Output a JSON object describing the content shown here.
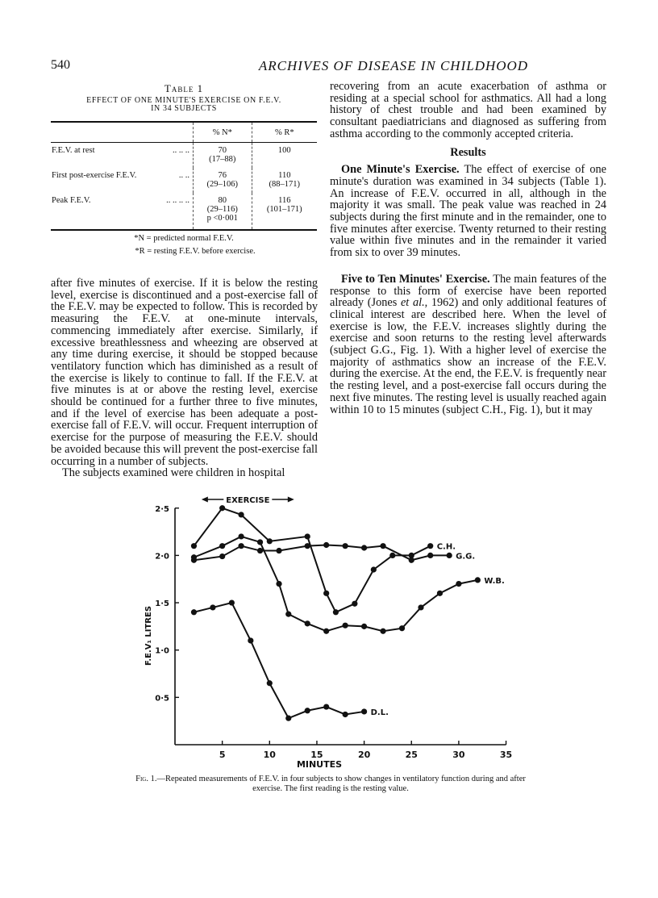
{
  "header": {
    "page_number": "540",
    "journal": "ARCHIVES OF DISEASE IN CHILDHOOD"
  },
  "table": {
    "title": "Table 1",
    "caption_line1": "EFFECT OF ONE MINUTE'S EXERCISE ON F.E.V.",
    "caption_line2": "IN 34 SUBJECTS",
    "columns": [
      "",
      "% N*",
      "% R*"
    ],
    "rows": [
      {
        "label": "F.E.V. at rest",
        "dots": "..   ..   ..",
        "n": "70",
        "n_range": "(17–88)",
        "n_extra": "",
        "r": "100",
        "r_range": ""
      },
      {
        "label": "First post-exercise F.E.V.",
        "dots": "..   ..",
        "n": "76",
        "n_range": "(29–106)",
        "n_extra": "",
        "r": "110",
        "r_range": "(88–171)"
      },
      {
        "label": "Peak F.E.V.",
        "dots": "..   ..   ..   ..",
        "n": "80",
        "n_range": "(29–116)",
        "n_extra": "p <0·001",
        "r": "116",
        "r_range": "(101–171)"
      }
    ],
    "footnote_n": "*N = predicted normal F.E.V.",
    "footnote_r": "*R = resting F.E.V. before exercise."
  },
  "left_column": {
    "p1": "after five minutes of exercise. If it is below the resting level, exercise is discontinued and a post-exercise fall of the F.E.V. may be expected to follow. This is recorded by measuring the F.E.V. at one-minute intervals, commencing immediately after exercise. Similarly, if excessive breathlessness and wheezing are observed at any time during exercise, it should be stopped because ventilatory function which has diminished as a result of the exercise is likely to continue to fall. If the F.E.V. at five minutes is at or above the resting level, exercise should be continued for a further three to five minutes, and if the level of exercise has been adequate a post-exercise fall of F.E.V. will occur. Frequent interruption of exercise for the purpose of measuring the F.E.V. should be avoided because this will prevent the post-exercise fall occurring in a number of subjects.",
    "p2": "The subjects examined were children in hospital"
  },
  "right_column": {
    "p1": "recovering from an acute exacerbation of asthma or residing at a special school for asthmatics. All had a long history of chest trouble and had been examined by consultant paediatricians and diagnosed as suffering from asthma according to the commonly accepted criteria.",
    "results_heading": "Results",
    "s1_heading": "One Minute's Exercise.",
    "s1_text": "The effect of exercise of one minute's duration was examined in 34 subjects (Table 1). An increase of F.E.V. occurred in all, although in the majority it was small. The peak value was reached in 24 subjects during the first minute and in the remainder, one to five minutes after exercise. Twenty returned to their resting value within five minutes and in the remainder it varied from six to over 39 minutes.",
    "s2_heading": "Five to Ten Minutes' Exercise.",
    "s2_text_a": "The main features of the response to this form of exercise have been reported already (Jones ",
    "s2_etal": "et al.",
    "s2_text_b": ", 1962) and only additional features of clinical interest are described here. When the level of exercise is low, the F.E.V. increases slightly during the exercise and soon returns to the resting level afterwards (subject G.G., Fig. 1). With a higher level of exercise the majority of asthmatics show an increase of the F.E.V. during the exercise. At the end, the F.E.V. is frequently near the resting level, and a post-exercise fall occurs during the next five minutes. The resting level is usually reached again within 10 to 15 minutes (subject C.H., Fig. 1), but it may"
  },
  "figure": {
    "caption_label": "Fig. 1.",
    "caption_text": "—Repeated measurements of F.E.V. in four subjects to show changes in ventilatory function during and after exercise. The first reading is the resting value."
  },
  "chart_data": {
    "type": "line",
    "xlabel": "MINUTES",
    "ylabel": "F.E.V₁ LITRES",
    "xlim": [
      0,
      35
    ],
    "ylim": [
      0,
      2.6
    ],
    "xticks": [
      5,
      10,
      15,
      20,
      25,
      30,
      35
    ],
    "xtick_labels": [
      "5",
      "10",
      "15",
      "20",
      "25",
      "30",
      "35"
    ],
    "yticks": [
      0.5,
      1.0,
      1.5,
      2.0,
      2.5
    ],
    "ytick_labels": [
      "0·5",
      "1·0",
      "1·5",
      "2·0",
      "2·5"
    ],
    "grid": false,
    "annotation": {
      "text": "EXERCISE",
      "x_start": 2.8,
      "x_end": 12.6
    },
    "series": [
      {
        "name": "C.H.",
        "x": [
          2,
          5,
          7,
          10,
          14,
          16,
          17,
          19,
          21,
          23,
          25,
          27
        ],
        "y": [
          2.1,
          2.5,
          2.43,
          2.15,
          2.2,
          1.6,
          1.4,
          1.49,
          1.85,
          2.0,
          2.0,
          2.1
        ]
      },
      {
        "name": "G.G.",
        "x": [
          2,
          5,
          7,
          9,
          11,
          14,
          16,
          18,
          20,
          22,
          25,
          27,
          29
        ],
        "y": [
          1.95,
          1.99,
          2.1,
          2.05,
          2.05,
          2.1,
          2.11,
          2.1,
          2.08,
          2.1,
          1.95,
          2.0,
          2.0
        ]
      },
      {
        "name": "W.B.",
        "x": [
          2,
          5,
          7,
          9,
          11,
          12,
          14,
          16,
          18,
          20,
          22,
          24,
          26,
          28,
          30,
          32
        ],
        "y": [
          1.98,
          2.1,
          2.2,
          2.14,
          1.7,
          1.38,
          1.28,
          1.2,
          1.26,
          1.25,
          1.2,
          1.23,
          1.45,
          1.6,
          1.7,
          1.74
        ]
      },
      {
        "name": "D.L.",
        "x": [
          2,
          4,
          6,
          8,
          10,
          12,
          14,
          16,
          18,
          20
        ],
        "y": [
          1.4,
          1.45,
          1.5,
          1.1,
          0.65,
          0.28,
          0.36,
          0.4,
          0.32,
          0.35
        ]
      }
    ]
  }
}
